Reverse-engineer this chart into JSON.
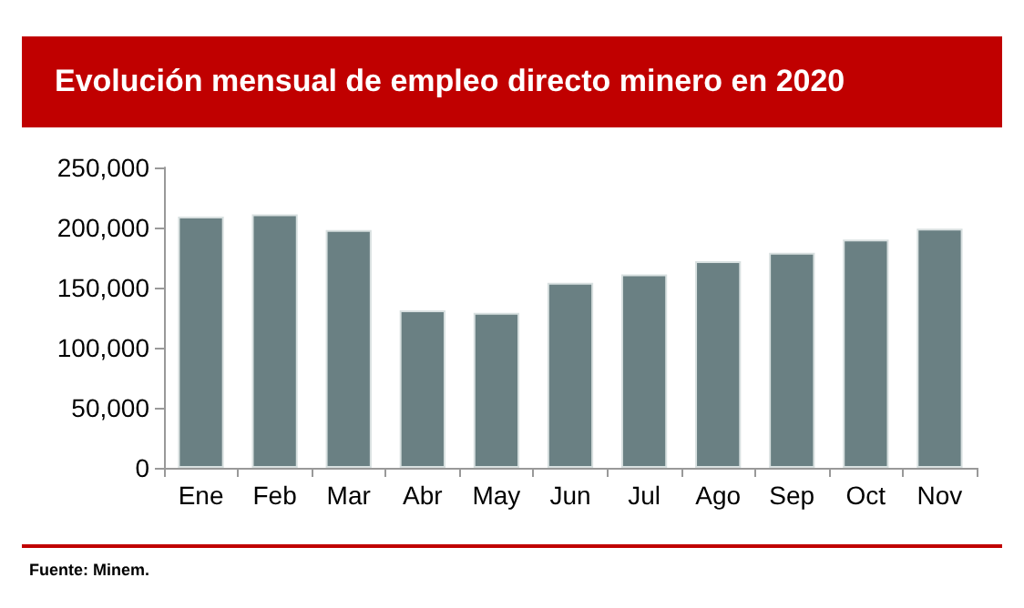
{
  "chart_data": {
    "type": "bar",
    "title": "Evolución mensual de empleo directo minero en 2020",
    "categories": [
      "Ene",
      "Feb",
      "Mar",
      "Abr",
      "May",
      "Jun",
      "Jul",
      "Ago",
      "Sep",
      "Oct",
      "Nov"
    ],
    "values": [
      209000,
      211000,
      198000,
      131000,
      129000,
      154000,
      161000,
      172000,
      179000,
      190000,
      199000
    ],
    "color": "#6a8083",
    "ylim": [
      0,
      250000
    ],
    "yticks": [
      0,
      {
        "value": 50000,
        "label": "50,000"
      },
      {
        "value": 100000,
        "label": "100,000"
      },
      {
        "value": 150000,
        "label": "150,000"
      },
      {
        "value": 200000,
        "label": "200,000"
      },
      {
        "value": 250000,
        "label": "250,000"
      }
    ],
    "grid": false,
    "annotations": [
      "Fuente: Minem."
    ]
  }
}
